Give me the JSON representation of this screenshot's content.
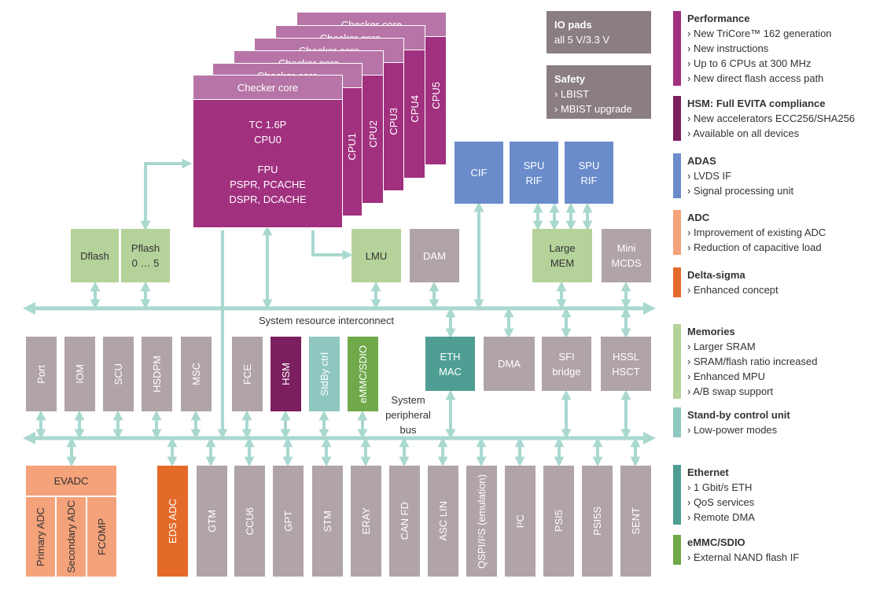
{
  "cpus": [
    {
      "header": "Checker core",
      "label": "CPU5"
    },
    {
      "header": "Checker core",
      "label": "CPU4"
    },
    {
      "header": "Checker core",
      "label": "CPU3"
    },
    {
      "header": "Checker core",
      "label": "CPU2"
    },
    {
      "header": "Checker core",
      "label": "CPU1"
    }
  ],
  "cpu0": {
    "header": "Checker core",
    "lines": [
      "TC 1.6P",
      "CPU0",
      "FPU",
      "PSPR, PCACHE",
      "DSPR, DCACHE"
    ]
  },
  "info_boxes": [
    {
      "title": "IO pads",
      "lines": [
        "all 5 V/3.3 V"
      ]
    },
    {
      "title": "Safety",
      "lines": [
        "› LBIST",
        "› MBIST upgrade"
      ]
    }
  ],
  "blocks": {
    "dflash": [
      "Dflash"
    ],
    "pflash": [
      "Pflash",
      "0 … 5"
    ],
    "lmu": [
      "LMU"
    ],
    "dam": [
      "DAM"
    ],
    "large_mem": [
      "Large",
      "MEM"
    ],
    "mini_mcds": [
      "Mini",
      "MCDS"
    ],
    "cif": [
      "CIF"
    ],
    "spu_rif_1": [
      "SPU",
      "RIF"
    ],
    "spu_rif_2": [
      "SPU",
      "RIF"
    ],
    "eth_mac": [
      "ETH",
      "MAC"
    ],
    "dma": [
      "DMA"
    ],
    "sfi_bridge": [
      "SFI",
      "bridge"
    ],
    "hssl_hsct": [
      "HSSL",
      "HSCT"
    ]
  },
  "buses": {
    "resource": "System resource interconnect",
    "peripheral": [
      "System",
      "peripheral",
      "bus"
    ]
  },
  "peripherals_top": [
    "Port",
    "IOM",
    "SCU",
    "HSDPM",
    "MSC",
    "FCE",
    "HSM",
    "StdBy ctrl",
    "eMMC/SDIO"
  ],
  "evadc": {
    "title": "EVADC",
    "parts": [
      "Primary ADC",
      "Secondary ADC",
      "FCOMP"
    ]
  },
  "peripherals_bottom": [
    "EDS ADC",
    "GTM",
    "CCU6",
    "GPT",
    "STM",
    "ERAY",
    "CAN FD",
    "ASC LIN",
    "QSPI/I²S (emulation)",
    "I²C",
    "PSI5",
    "PSI5S",
    "SENT"
  ],
  "legend": [
    {
      "title": "Performance",
      "items": [
        "› New TriCore™ 162 generation",
        "› New instructions",
        "› Up to 6 CPUs at 300 MHz",
        "› New direct flash access path"
      ]
    },
    {
      "title": "HSM: Full EVITA compliance",
      "items": [
        "› New accelerators ECC256/SHA256",
        "› Available on all devices"
      ]
    },
    {
      "title": "ADAS",
      "items": [
        "› LVDS IF",
        "› Signal processing unit"
      ]
    },
    {
      "title": "ADC",
      "items": [
        "› Improvement of existing ADC",
        "› Reduction of capacitive load"
      ]
    },
    {
      "title": "Delta-sigma",
      "items": [
        "› Enhanced concept"
      ]
    },
    {
      "title": "Memories",
      "items": [
        "› Larger SRAM",
        "› SRAM/flash ratio increased",
        "› Enhanced MPU",
        "› A/B swap support"
      ]
    },
    {
      "title": "Stand-by control unit",
      "items": [
        "› Low-power modes"
      ]
    },
    {
      "title": "Ethernet",
      "items": [
        "› 1 Gbit/s ETH",
        "› QoS services",
        "› Remote DMA"
      ]
    },
    {
      "title": "eMMC/SDIO",
      "items": [
        "› External NAND flash IF"
      ]
    }
  ]
}
